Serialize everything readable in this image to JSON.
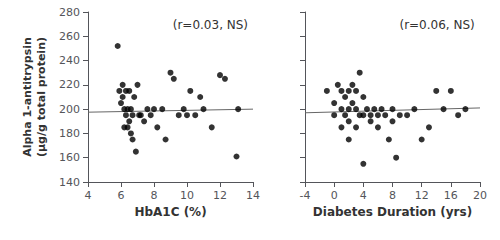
{
  "chart_data": [
    {
      "type": "scatter",
      "xlabel": "HbA1C (%)",
      "ylabel": "Alpha 1-antitrypsin\n(μg/g total protein)",
      "annotation": "(r=0.03, NS)",
      "xlim": [
        4,
        14
      ],
      "xticks": [
        4,
        6,
        8,
        10,
        12,
        14
      ],
      "ylim": [
        140,
        280
      ],
      "yticks": [
        140,
        160,
        180,
        200,
        220,
        240,
        260,
        280
      ],
      "grid": false,
      "series": [
        {
          "type": "scatter",
          "color": "#000000",
          "x": [
            5.8,
            5.9,
            6.0,
            6.1,
            6.1,
            6.2,
            6.2,
            6.3,
            6.3,
            6.4,
            6.4,
            6.5,
            6.5,
            6.6,
            6.6,
            6.7,
            6.7,
            6.8,
            6.9,
            7.0,
            7.1,
            7.2,
            7.4,
            7.6,
            7.8,
            8.0,
            8.2,
            8.5,
            8.7,
            9.0,
            9.2,
            9.5,
            9.8,
            10.0,
            10.2,
            10.5,
            10.8,
            11.0,
            11.5,
            12.0,
            12.3,
            13.0,
            13.1
          ],
          "values": [
            252,
            215,
            205,
            220,
            210,
            200,
            185,
            215,
            195,
            200,
            185,
            215,
            190,
            200,
            180,
            175,
            195,
            210,
            165,
            220,
            195,
            195,
            190,
            200,
            195,
            200,
            185,
            200,
            175,
            230,
            225,
            195,
            200,
            195,
            215,
            195,
            210,
            200,
            185,
            228,
            225,
            161,
            200
          ]
        },
        {
          "type": "line",
          "color": "#666666",
          "x": [
            4,
            14
          ],
          "values": [
            197.5,
            200.0
          ]
        }
      ]
    },
    {
      "type": "scatter",
      "xlabel": "Diabetes Duration (yrs)",
      "annotation": "(r=0.06, NS)",
      "xlim": [
        -4,
        20
      ],
      "xticks": [
        -4,
        0,
        4,
        8,
        12,
        16,
        20
      ],
      "ylim": [
        140,
        280
      ],
      "yticks": [
        140,
        160,
        180,
        200,
        220,
        240,
        260,
        280
      ],
      "grid": false,
      "tick_labels": "x",
      "series": [
        {
          "type": "scatter",
          "color": "#000000",
          "x": [
            -1,
            0,
            0,
            0.5,
            1,
            1,
            1,
            1.5,
            1.5,
            2,
            2,
            2,
            2,
            2.5,
            2.5,
            3,
            3,
            3,
            3.5,
            3.5,
            4,
            4,
            4,
            4.5,
            5,
            5,
            5.5,
            6,
            6,
            6.5,
            7,
            7.5,
            8,
            8,
            8.5,
            9,
            10,
            11,
            12,
            13,
            14,
            15,
            16,
            17,
            18
          ],
          "values": [
            215,
            205,
            195,
            220,
            200,
            185,
            215,
            210,
            195,
            215,
            200,
            190,
            175,
            220,
            205,
            200,
            185,
            215,
            195,
            230,
            155,
            195,
            210,
            200,
            195,
            190,
            200,
            195,
            185,
            200,
            195,
            175,
            200,
            190,
            160,
            195,
            195,
            200,
            175,
            185,
            215,
            200,
            215,
            195,
            200
          ]
        },
        {
          "type": "line",
          "color": "#666666",
          "x": [
            -4,
            20
          ],
          "values": [
            197,
            201
          ]
        }
      ]
    }
  ]
}
